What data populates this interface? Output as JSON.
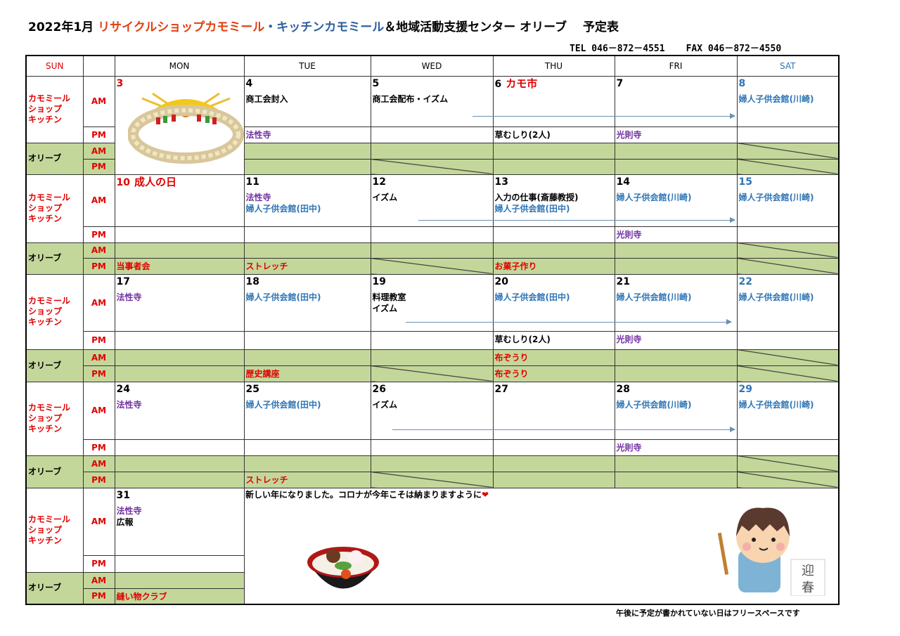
{
  "title": {
    "part1": "2022年1月 ",
    "part2": "リサイクルショップカモミール",
    "part3": "・キッチンカモミール",
    "part4": "＆地域活動支援センター オリーブ　 予定表"
  },
  "contact": {
    "tel": "TEL 046－872－4551",
    "fax": "FAX 046－872－4550"
  },
  "headers": [
    "SUN",
    "",
    "MON",
    "TUE",
    "WED",
    "THU",
    "FRI",
    "SAT"
  ],
  "labels": {
    "kamo": "カモミール\nショップ\nキッチン",
    "olive": "オリーブ",
    "am": "AM",
    "pm": "PM"
  },
  "colors": {
    "red": "#e00000",
    "purple": "#7030a0",
    "blue": "#2e75b6",
    "black": "#000000",
    "green": "#c4d79b"
  },
  "weeks": [
    {
      "days": [
        {
          "num": "3",
          "num_color": "red",
          "am": [],
          "pm": [],
          "oam": [],
          "opm": [],
          "image": "shimenawa"
        },
        {
          "num": "4",
          "am": [
            {
              "t": "商工会封入",
              "c": "black"
            }
          ],
          "pm": [
            {
              "t": "法性寺",
              "c": "purple"
            }
          ],
          "oam": [],
          "opm": []
        },
        {
          "num": "5",
          "am": [
            {
              "t": "商工会配布・イズム",
              "c": "black"
            }
          ],
          "pm": [],
          "oam": [],
          "opm": [],
          "opm_diag": true
        },
        {
          "num": "6",
          "extra": "カモ市",
          "am": [],
          "pm": [
            {
              "t": "草むしり(2人)",
              "c": "black"
            }
          ],
          "oam": [],
          "opm": []
        },
        {
          "num": "7",
          "am": [],
          "pm": [
            {
              "t": "光則寺",
              "c": "purple"
            }
          ],
          "oam": [],
          "opm": []
        },
        {
          "num": "8",
          "num_color": "blue",
          "am": [
            {
              "t": "婦人子供会館(川崎)",
              "c": "blue"
            }
          ],
          "pm": [],
          "oam": [],
          "opm": [],
          "oam_diag": true,
          "opm_diag": true
        }
      ]
    },
    {
      "days": [
        {
          "num": "10",
          "extra": "成人の日",
          "num_color": "red",
          "am": [],
          "pm": [],
          "oam": [],
          "opm": [
            {
              "t": "当事者会",
              "c": "red"
            }
          ]
        },
        {
          "num": "11",
          "am": [
            {
              "t": "法性寺",
              "c": "purple"
            },
            {
              "t": "婦人子供会館(田中)",
              "c": "blue"
            }
          ],
          "pm": [],
          "oam": [],
          "opm": [
            {
              "t": "ストレッチ",
              "c": "red"
            }
          ]
        },
        {
          "num": "12",
          "am": [
            {
              "t": " ",
              "c": "black"
            },
            {
              "t": "イズム",
              "c": "black"
            }
          ],
          "pm": [],
          "oam": [],
          "opm": [],
          "opm_diag": true
        },
        {
          "num": "13",
          "am": [
            {
              "t": "入力の仕事(斎藤教授)",
              "c": "black"
            },
            {
              "t": "婦人子供会館(田中)",
              "c": "blue"
            }
          ],
          "pm": [],
          "oam": [],
          "opm": [
            {
              "t": "お菓子作り",
              "c": "red"
            }
          ]
        },
        {
          "num": "14",
          "am": [
            {
              "t": "婦人子供会館(川崎)",
              "c": "blue"
            }
          ],
          "pm": [
            {
              "t": "光則寺",
              "c": "purple"
            }
          ],
          "oam": [],
          "opm": []
        },
        {
          "num": "15",
          "num_color": "blue",
          "am": [
            {
              "t": "婦人子供会館(川崎)",
              "c": "blue"
            }
          ],
          "pm": [],
          "oam": [],
          "opm": [],
          "oam_diag": true,
          "opm_diag": true
        }
      ]
    },
    {
      "days": [
        {
          "num": "17",
          "am": [
            {
              "t": "法性寺",
              "c": "purple"
            }
          ],
          "pm": [],
          "oam": [],
          "opm": []
        },
        {
          "num": "18",
          "am": [
            {
              "t": "婦人子供会館(田中)",
              "c": "blue"
            }
          ],
          "pm": [],
          "oam": [],
          "opm": [
            {
              "t": "歴史講座",
              "c": "red"
            }
          ]
        },
        {
          "num": "19",
          "am": [
            {
              "t": "料理教室",
              "c": "black"
            },
            {
              "t": "イズム",
              "c": "black"
            }
          ],
          "pm": [],
          "oam": [],
          "opm": [],
          "opm_diag": true
        },
        {
          "num": "20",
          "am": [
            {
              "t": "婦人子供会館(田中)",
              "c": "blue"
            }
          ],
          "pm": [
            {
              "t": "草むしり(2人)",
              "c": "black"
            }
          ],
          "oam": [
            {
              "t": "布ぞうり",
              "c": "red"
            }
          ],
          "opm": [
            {
              "t": "布ぞうり",
              "c": "red"
            }
          ]
        },
        {
          "num": "21",
          "am": [
            {
              "t": "婦人子供会館(川崎)",
              "c": "blue"
            }
          ],
          "pm": [
            {
              "t": "光則寺",
              "c": "purple"
            }
          ],
          "oam": [],
          "opm": []
        },
        {
          "num": "22",
          "num_color": "blue",
          "am": [
            {
              "t": "婦人子供会館(川崎)",
              "c": "blue"
            }
          ],
          "pm": [],
          "oam": [],
          "opm": [],
          "oam_diag": true,
          "opm_diag": true
        }
      ]
    },
    {
      "days": [
        {
          "num": "24",
          "am": [
            {
              "t": "法性寺",
              "c": "purple"
            }
          ],
          "pm": [],
          "oam": [],
          "opm": []
        },
        {
          "num": "25",
          "am": [
            {
              "t": "婦人子供会館(田中)",
              "c": "blue"
            }
          ],
          "pm": [],
          "oam": [],
          "opm": [
            {
              "t": "ストレッチ",
              "c": "red"
            }
          ]
        },
        {
          "num": "26",
          "am": [
            {
              "t": " ",
              "c": "black"
            },
            {
              "t": "イズム",
              "c": "black"
            }
          ],
          "pm": [],
          "oam": [],
          "opm": [],
          "opm_diag": true
        },
        {
          "num": "27",
          "am": [],
          "pm": [],
          "oam": [],
          "opm": []
        },
        {
          "num": "28",
          "am": [
            {
              "t": "婦人子供会館(川崎)",
              "c": "blue"
            }
          ],
          "pm": [
            {
              "t": "光則寺",
              "c": "purple"
            }
          ],
          "oam": [],
          "opm": []
        },
        {
          "num": "29",
          "num_color": "blue",
          "am": [
            {
              "t": "婦人子供会館(川崎)",
              "c": "blue"
            }
          ],
          "pm": [],
          "oam": [],
          "opm": [],
          "oam_diag": true,
          "opm_diag": true
        }
      ]
    },
    {
      "days": [
        {
          "num": "31",
          "am": [
            {
              "t": "法性寺",
              "c": "purple"
            },
            {
              "t": "広報",
              "c": "black"
            }
          ],
          "pm": [],
          "oam": [],
          "opm": [
            {
              "t": "縫い物クラブ",
              "c": "red"
            }
          ]
        }
      ]
    }
  ],
  "message": {
    "text": "新しい年になりました。コロナが今年こそは納まりますように",
    "heart": "❤"
  },
  "kanji_card": [
    "迎",
    "春"
  ],
  "footer_note": "午後に予定が書かれていない日はフリースペースです"
}
